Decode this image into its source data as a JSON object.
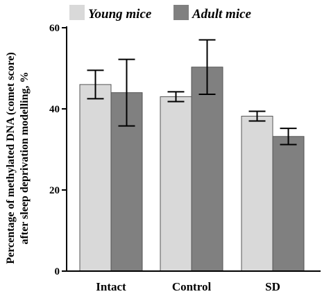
{
  "chart_data": {
    "type": "bar",
    "categories": [
      "Intact",
      "Control",
      "SD"
    ],
    "series": [
      {
        "name": "Young mice",
        "color": "#d9d9d9",
        "values": [
          46,
          43,
          38.2
        ],
        "errors": [
          3.5,
          1.2,
          1.2
        ]
      },
      {
        "name": "Adult mice",
        "color": "#808080",
        "values": [
          44,
          50.3,
          33.2
        ],
        "errors": [
          8.2,
          6.7,
          2
        ]
      }
    ],
    "ylabel_lines": [
      "Percentage of methylated DNA (comet score)",
      "after sleep deprivation  modelling,  %"
    ],
    "ylim": [
      0,
      60
    ],
    "yticks": [
      0,
      20,
      40,
      60
    ],
    "legend_position": "top"
  }
}
